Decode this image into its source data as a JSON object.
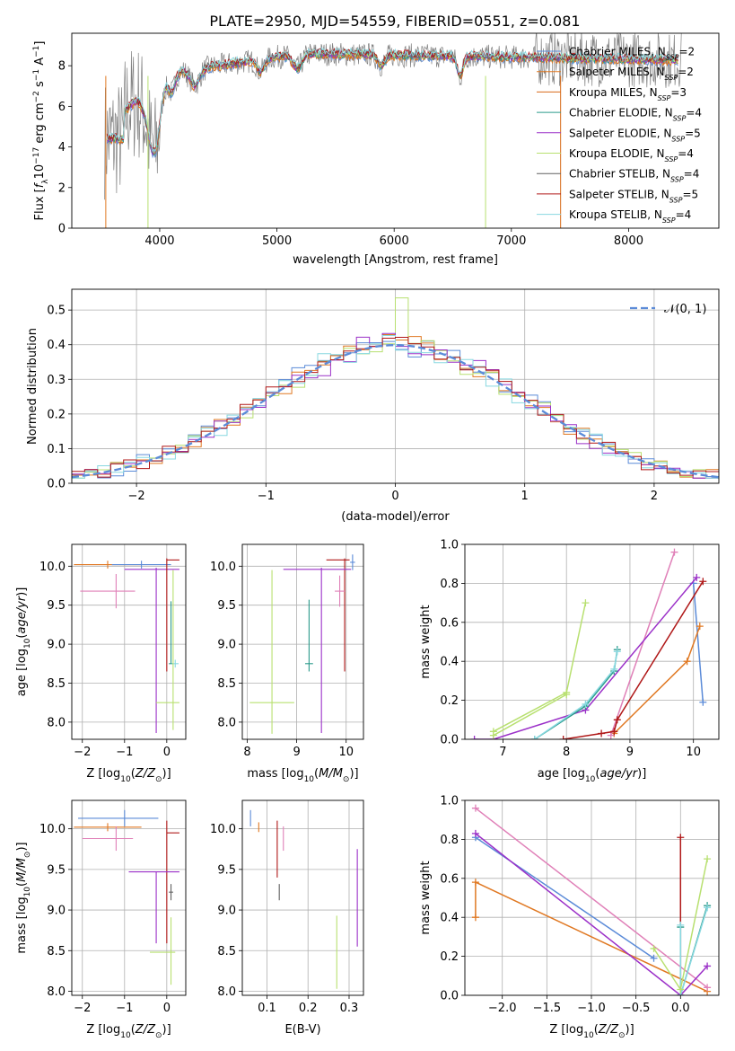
{
  "title": "PLATE=2950, MJD=54559, FIBERID=0551, z=0.081",
  "colors": {
    "chabrier_miles": "#5b8bd8",
    "salpeter_miles": "#e07822",
    "kroupa_miles": "#d86a18",
    "chabrier_elodie": "#2a9a8a",
    "salpeter_elodie": "#9b30c8",
    "kroupa_elodie": "#b8e070",
    "chabrier_stelib": "#606060",
    "salpeter_stelib": "#b01818",
    "kroupa_stelib": "#88d8e0",
    "pink": "#e080b8",
    "normal": "#5b8bd8"
  },
  "chart_data": [
    {
      "id": "spectrum",
      "type": "line",
      "title": "PLATE=2950, MJD=54559, FIBERID=0551, z=0.081",
      "xlabel": "wavelength [Angstrom, rest frame]",
      "ylabel": "Flux [f_λ 10^-17 erg cm^-2 s^-1 A^-1]",
      "xlim": [
        3250,
        8770
      ],
      "ylim": [
        0,
        9.6
      ],
      "xticks": [
        "4000",
        "5000",
        "6000",
        "7000",
        "8000"
      ],
      "yticks": [
        "0",
        "2",
        "4",
        "6",
        "8"
      ],
      "grid": false,
      "legend": "upper-right",
      "data_x_range": [
        3530,
        8450
      ],
      "series": [
        {
          "name": "Chabrier MILES, N_SSP=2",
          "color_key": "chabrier_miles"
        },
        {
          "name": "Salpeter MILES, N_SSP=2",
          "color_key": "salpeter_miles"
        },
        {
          "name": "Kroupa MILES, N_SSP=3",
          "color_key": "kroupa_miles"
        },
        {
          "name": "Chabrier ELODIE, N_SSP=4",
          "color_key": "chabrier_elodie"
        },
        {
          "name": "Salpeter ELODIE, N_SSP=5",
          "color_key": "salpeter_elodie"
        },
        {
          "name": "Kroupa ELODIE, N_SSP=4",
          "color_key": "kroupa_elodie"
        },
        {
          "name": "Chabrier STELIB, N_SSP=4",
          "color_key": "chabrier_stelib"
        },
        {
          "name": "Salpeter STELIB, N_SSP=5",
          "color_key": "salpeter_stelib"
        },
        {
          "name": "Kroupa STELIB, N_SSP=4",
          "color_key": "kroupa_stelib"
        }
      ]
    },
    {
      "id": "residuals",
      "type": "line",
      "xlabel": "(data-model)/error",
      "ylabel": "Normed distribution",
      "xlim": [
        -2.5,
        2.5
      ],
      "ylim": [
        0,
        0.56
      ],
      "xticks": [
        -2,
        -1,
        0,
        1,
        2
      ],
      "yticks": [
        0.0,
        0.1,
        0.2,
        0.3,
        0.4,
        0.5
      ],
      "grid": true,
      "legend": "upper-right",
      "legend_label": "𝒩(0, 1)",
      "bin_width": 0.1,
      "series": [
        {
          "name": "N(0,1)",
          "color_key": "normal",
          "style": "dashed",
          "mean": 0,
          "sigma": 1
        },
        {
          "color_key": "kroupa_elodie",
          "peak_bin": 0.05,
          "peak_value": 0.535
        }
      ]
    },
    {
      "id": "age_vs_Z",
      "type": "scatter",
      "xlabel": "Z [log10(Z/Z⊙)]",
      "ylabel": "age [log10(age/yr)]",
      "xlim": [
        -2.25,
        0.45
      ],
      "ylim": [
        7.78,
        10.28
      ],
      "xticks": [
        "-2",
        "-1",
        "0"
      ],
      "yticks": [
        "8.0",
        "8.5",
        "9.0",
        "9.5",
        "10.0"
      ],
      "grid": true,
      "points": [
        {
          "x": -1.4,
          "y": 10.02,
          "xerr": [
            0.8,
            0.8
          ],
          "yerr": [
            0.05,
            0.05
          ],
          "color_key": "salpeter_miles"
        },
        {
          "x": -0.6,
          "y": 10.02,
          "xerr": [
            0.7,
            0.7
          ],
          "yerr": [
            0.05,
            0.05
          ],
          "color_key": "chabrier_miles"
        },
        {
          "x": -1.2,
          "y": 9.68,
          "xerr": [
            0.85,
            0.45
          ],
          "yerr": [
            0.22,
            0.22
          ],
          "color_key": "pink"
        },
        {
          "x": -0.25,
          "y": 9.96,
          "xerr": [
            0.75,
            0.55
          ],
          "yerr": [
            2.1,
            0.02
          ],
          "color_key": "salpeter_elodie"
        },
        {
          "x": 0.0,
          "y": 10.08,
          "xerr": [
            0,
            0.3
          ],
          "yerr": [
            1.43,
            0.02
          ],
          "color_key": "salpeter_stelib"
        },
        {
          "x": 0.1,
          "y": 8.75,
          "xerr": [
            0.05,
            0.05
          ],
          "yerr": [
            0,
            0.8
          ],
          "color_key": "chabrier_elodie"
        },
        {
          "x": 0.2,
          "y": 8.75,
          "xerr": [
            0.08,
            0.08
          ],
          "yerr": [
            0.05,
            0.05
          ],
          "color_key": "kroupa_stelib"
        },
        {
          "x": 0.15,
          "y": 8.25,
          "xerr": [
            0.4,
            0.15
          ],
          "yerr": [
            0.35,
            1.7
          ],
          "color_key": "kroupa_elodie"
        }
      ]
    },
    {
      "id": "age_vs_mass",
      "type": "scatter",
      "xlabel": "mass [log10(M/M⊙)]",
      "ylabel": "",
      "xlim": [
        7.9,
        10.35
      ],
      "ylim": [
        7.78,
        10.28
      ],
      "xticks": [
        "8",
        "9",
        "10"
      ],
      "yticks": [
        "8.0",
        "8.5",
        "9.0",
        "9.5",
        "10.0"
      ],
      "grid": true,
      "points": [
        {
          "x": 10.13,
          "y": 10.05,
          "xerr": [
            0.05,
            0.05
          ],
          "yerr": [
            0.1,
            0.1
          ],
          "color_key": "chabrier_miles"
        },
        {
          "x": 9.97,
          "y": 10.08,
          "xerr": [
            0.37,
            0.1
          ],
          "yerr": [
            1.43,
            0.02
          ],
          "color_key": "salpeter_stelib"
        },
        {
          "x": 9.5,
          "y": 9.96,
          "xerr": [
            0.77,
            0.6
          ],
          "yerr": [
            2.1,
            0.02
          ],
          "color_key": "salpeter_elodie"
        },
        {
          "x": 9.87,
          "y": 9.68,
          "xerr": [
            0.1,
            0.1
          ],
          "yerr": [
            0.2,
            0.2
          ],
          "color_key": "pink"
        },
        {
          "x": 9.25,
          "y": 8.75,
          "xerr": [
            0.08,
            0.08
          ],
          "yerr": [
            0.1,
            0.82
          ],
          "color_key": "chabrier_elodie"
        },
        {
          "x": 8.5,
          "y": 8.25,
          "xerr": [
            0.45,
            0.45
          ],
          "yerr": [
            0.4,
            1.7
          ],
          "color_key": "kroupa_elodie"
        }
      ]
    },
    {
      "id": "mass_weight_vs_age",
      "type": "line",
      "xlabel": "age [log10(age/yr)]",
      "ylabel": "mass weight",
      "xlim": [
        6.4,
        10.4
      ],
      "ylim": [
        0,
        1.0
      ],
      "xticks": [
        "7",
        "8",
        "9",
        "10"
      ],
      "yticks": [
        "0.0",
        "0.2",
        "0.4",
        "0.6",
        "0.8",
        "1.0"
      ],
      "grid": true,
      "series": [
        {
          "color_key": "chabrier_miles",
          "x": [
            10.0,
            10.15
          ],
          "y": [
            0.8,
            0.19
          ]
        },
        {
          "color_key": "salpeter_miles",
          "x": [
            8.75,
            9.9,
            10.1
          ],
          "y": [
            0.03,
            0.4,
            0.58
          ]
        },
        {
          "color_key": "pink",
          "x": [
            8.7,
            9.7
          ],
          "y": [
            0.02,
            0.96
          ]
        },
        {
          "color_key": "salpeter_elodie",
          "x": [
            6.55,
            6.85,
            8.3,
            10.05
          ],
          "y": [
            0.0,
            0.0,
            0.15,
            0.83
          ]
        },
        {
          "color_key": "salpeter_stelib",
          "x": [
            7.95,
            8.55,
            8.75,
            8.8,
            10.15
          ],
          "y": [
            0.0,
            0.03,
            0.04,
            0.1,
            0.81
          ]
        },
        {
          "color_key": "chabrier_elodie",
          "x": [
            7.5,
            8.3,
            8.75,
            8.8
          ],
          "y": [
            0.0,
            0.17,
            0.35,
            0.46
          ]
        },
        {
          "color_key": "kroupa_stelib",
          "x": [
            7.5,
            8.3,
            8.75,
            8.8
          ],
          "y": [
            0.0,
            0.18,
            0.36,
            0.45
          ]
        },
        {
          "color_key": "kroupa_elodie",
          "x": [
            6.85,
            8.0,
            8.3
          ],
          "y": [
            0.04,
            0.24,
            0.7
          ]
        },
        {
          "color_key": "kroupa_elodie",
          "x": [
            6.85,
            8.0
          ],
          "y": [
            0.02,
            0.23
          ]
        }
      ]
    },
    {
      "id": "mass_vs_Z",
      "type": "scatter",
      "xlabel": "Z [log10(Z/Z⊙)]",
      "ylabel": "mass [log10(M/M⊙)]",
      "xlim": [
        -2.25,
        0.45
      ],
      "ylim": [
        7.95,
        10.35
      ],
      "xticks": [
        "-2",
        "-1",
        "0"
      ],
      "yticks": [
        "8.0",
        "8.5",
        "9.0",
        "9.5",
        "10.0"
      ],
      "grid": true,
      "points": [
        {
          "x": -1.0,
          "y": 10.13,
          "xerr": [
            1.1,
            0.8
          ],
          "yerr": [
            0.1,
            0.1
          ],
          "color_key": "chabrier_miles"
        },
        {
          "x": -1.4,
          "y": 10.02,
          "xerr": [
            0.8,
            0.8
          ],
          "yerr": [
            0.05,
            0.05
          ],
          "color_key": "salpeter_miles"
        },
        {
          "x": -1.2,
          "y": 9.88,
          "xerr": [
            0.8,
            0.4
          ],
          "yerr": [
            0.15,
            0.15
          ],
          "color_key": "pink"
        },
        {
          "x": 0.0,
          "y": 9.95,
          "xerr": [
            0,
            0.3
          ],
          "yerr": [
            1.36,
            0.15
          ],
          "color_key": "salpeter_stelib"
        },
        {
          "x": -0.25,
          "y": 9.47,
          "xerr": [
            0.65,
            0.55
          ],
          "yerr": [
            0.88,
            0.0
          ],
          "color_key": "salpeter_elodie"
        },
        {
          "x": 0.1,
          "y": 9.22,
          "xerr": [
            0.05,
            0.05
          ],
          "yerr": [
            0.1,
            0.1
          ],
          "color_key": "chabrier_stelib"
        },
        {
          "x": 0.1,
          "y": 8.48,
          "xerr": [
            0.5,
            0.1
          ],
          "yerr": [
            0.4,
            0.43
          ],
          "color_key": "kroupa_elodie"
        }
      ]
    },
    {
      "id": "mass_vs_EBV",
      "type": "scatter",
      "xlabel": "E(B-V)",
      "ylabel": "",
      "xlim": [
        0.04,
        0.335
      ],
      "ylim": [
        7.95,
        10.35
      ],
      "xticks": [
        "0.1",
        "0.2",
        "0.3"
      ],
      "yticks": [
        "8.0",
        "8.5",
        "9.0",
        "9.5",
        "10.0"
      ],
      "grid": true,
      "points": [
        {
          "x": 0.06,
          "y": 10.13,
          "xerr": [
            0,
            0
          ],
          "yerr": [
            0.1,
            0.1
          ],
          "color_key": "chabrier_miles"
        },
        {
          "x": 0.08,
          "y": 10.02,
          "xerr": [
            0,
            0
          ],
          "yerr": [
            0.06,
            0.06
          ],
          "color_key": "salpeter_miles"
        },
        {
          "x": 0.14,
          "y": 9.88,
          "xerr": [
            0,
            0
          ],
          "yerr": [
            0.15,
            0.15
          ],
          "color_key": "pink"
        },
        {
          "x": 0.125,
          "y": 9.75,
          "xerr": [
            0,
            0
          ],
          "yerr": [
            0.35,
            0.35
          ],
          "color_key": "salpeter_stelib"
        },
        {
          "x": 0.13,
          "y": 9.22,
          "xerr": [
            0,
            0
          ],
          "yerr": [
            0.1,
            0.1
          ],
          "color_key": "chabrier_stelib"
        },
        {
          "x": 0.32,
          "y": 9.15,
          "xerr": [
            0,
            0
          ],
          "yerr": [
            0.6,
            0.6
          ],
          "color_key": "salpeter_elodie"
        },
        {
          "x": 0.27,
          "y": 8.48,
          "xerr": [
            0,
            0
          ],
          "yerr": [
            0.45,
            0.45
          ],
          "color_key": "kroupa_elodie"
        }
      ]
    },
    {
      "id": "mass_weight_vs_Z",
      "type": "line",
      "xlabel": "Z [log10(Z/Z⊙)]",
      "ylabel": "mass weight",
      "xlim": [
        -2.42,
        0.43
      ],
      "ylim": [
        0,
        1.0
      ],
      "xticks": [
        "-2.0",
        "-1.5",
        "-1.0",
        "-0.5",
        "0.0"
      ],
      "yticks": [
        "0.0",
        "0.2",
        "0.4",
        "0.6",
        "0.8",
        "1.0"
      ],
      "grid": true,
      "series": [
        {
          "color_key": "chabrier_miles",
          "x": [
            -2.3,
            -0.3
          ],
          "y": [
            0.81,
            0.19
          ]
        },
        {
          "color_key": "salpeter_miles",
          "x": [
            -2.3,
            -2.3,
            0.3
          ],
          "y": [
            0.4,
            0.58,
            0.02
          ]
        },
        {
          "color_key": "pink",
          "x": [
            -2.3,
            0.3
          ],
          "y": [
            0.96,
            0.04
          ]
        },
        {
          "color_key": "salpeter_elodie",
          "x": [
            -2.3,
            0.0,
            0.3
          ],
          "y": [
            0.83,
            0.0,
            0.15
          ]
        },
        {
          "color_key": "salpeter_stelib",
          "x": [
            0.0,
            0.0
          ],
          "y": [
            0.81,
            0.0
          ]
        },
        {
          "color_key": "chabrier_elodie",
          "x": [
            0.0,
            0.0,
            0.3
          ],
          "y": [
            0.35,
            0.0,
            0.46
          ]
        },
        {
          "color_key": "kroupa_stelib",
          "x": [
            0.0,
            0.0,
            0.3
          ],
          "y": [
            0.36,
            0.0,
            0.45
          ]
        },
        {
          "color_key": "kroupa_elodie",
          "x": [
            -0.3,
            0.0,
            0.3
          ],
          "y": [
            0.24,
            0.03,
            0.7
          ]
        }
      ]
    }
  ]
}
